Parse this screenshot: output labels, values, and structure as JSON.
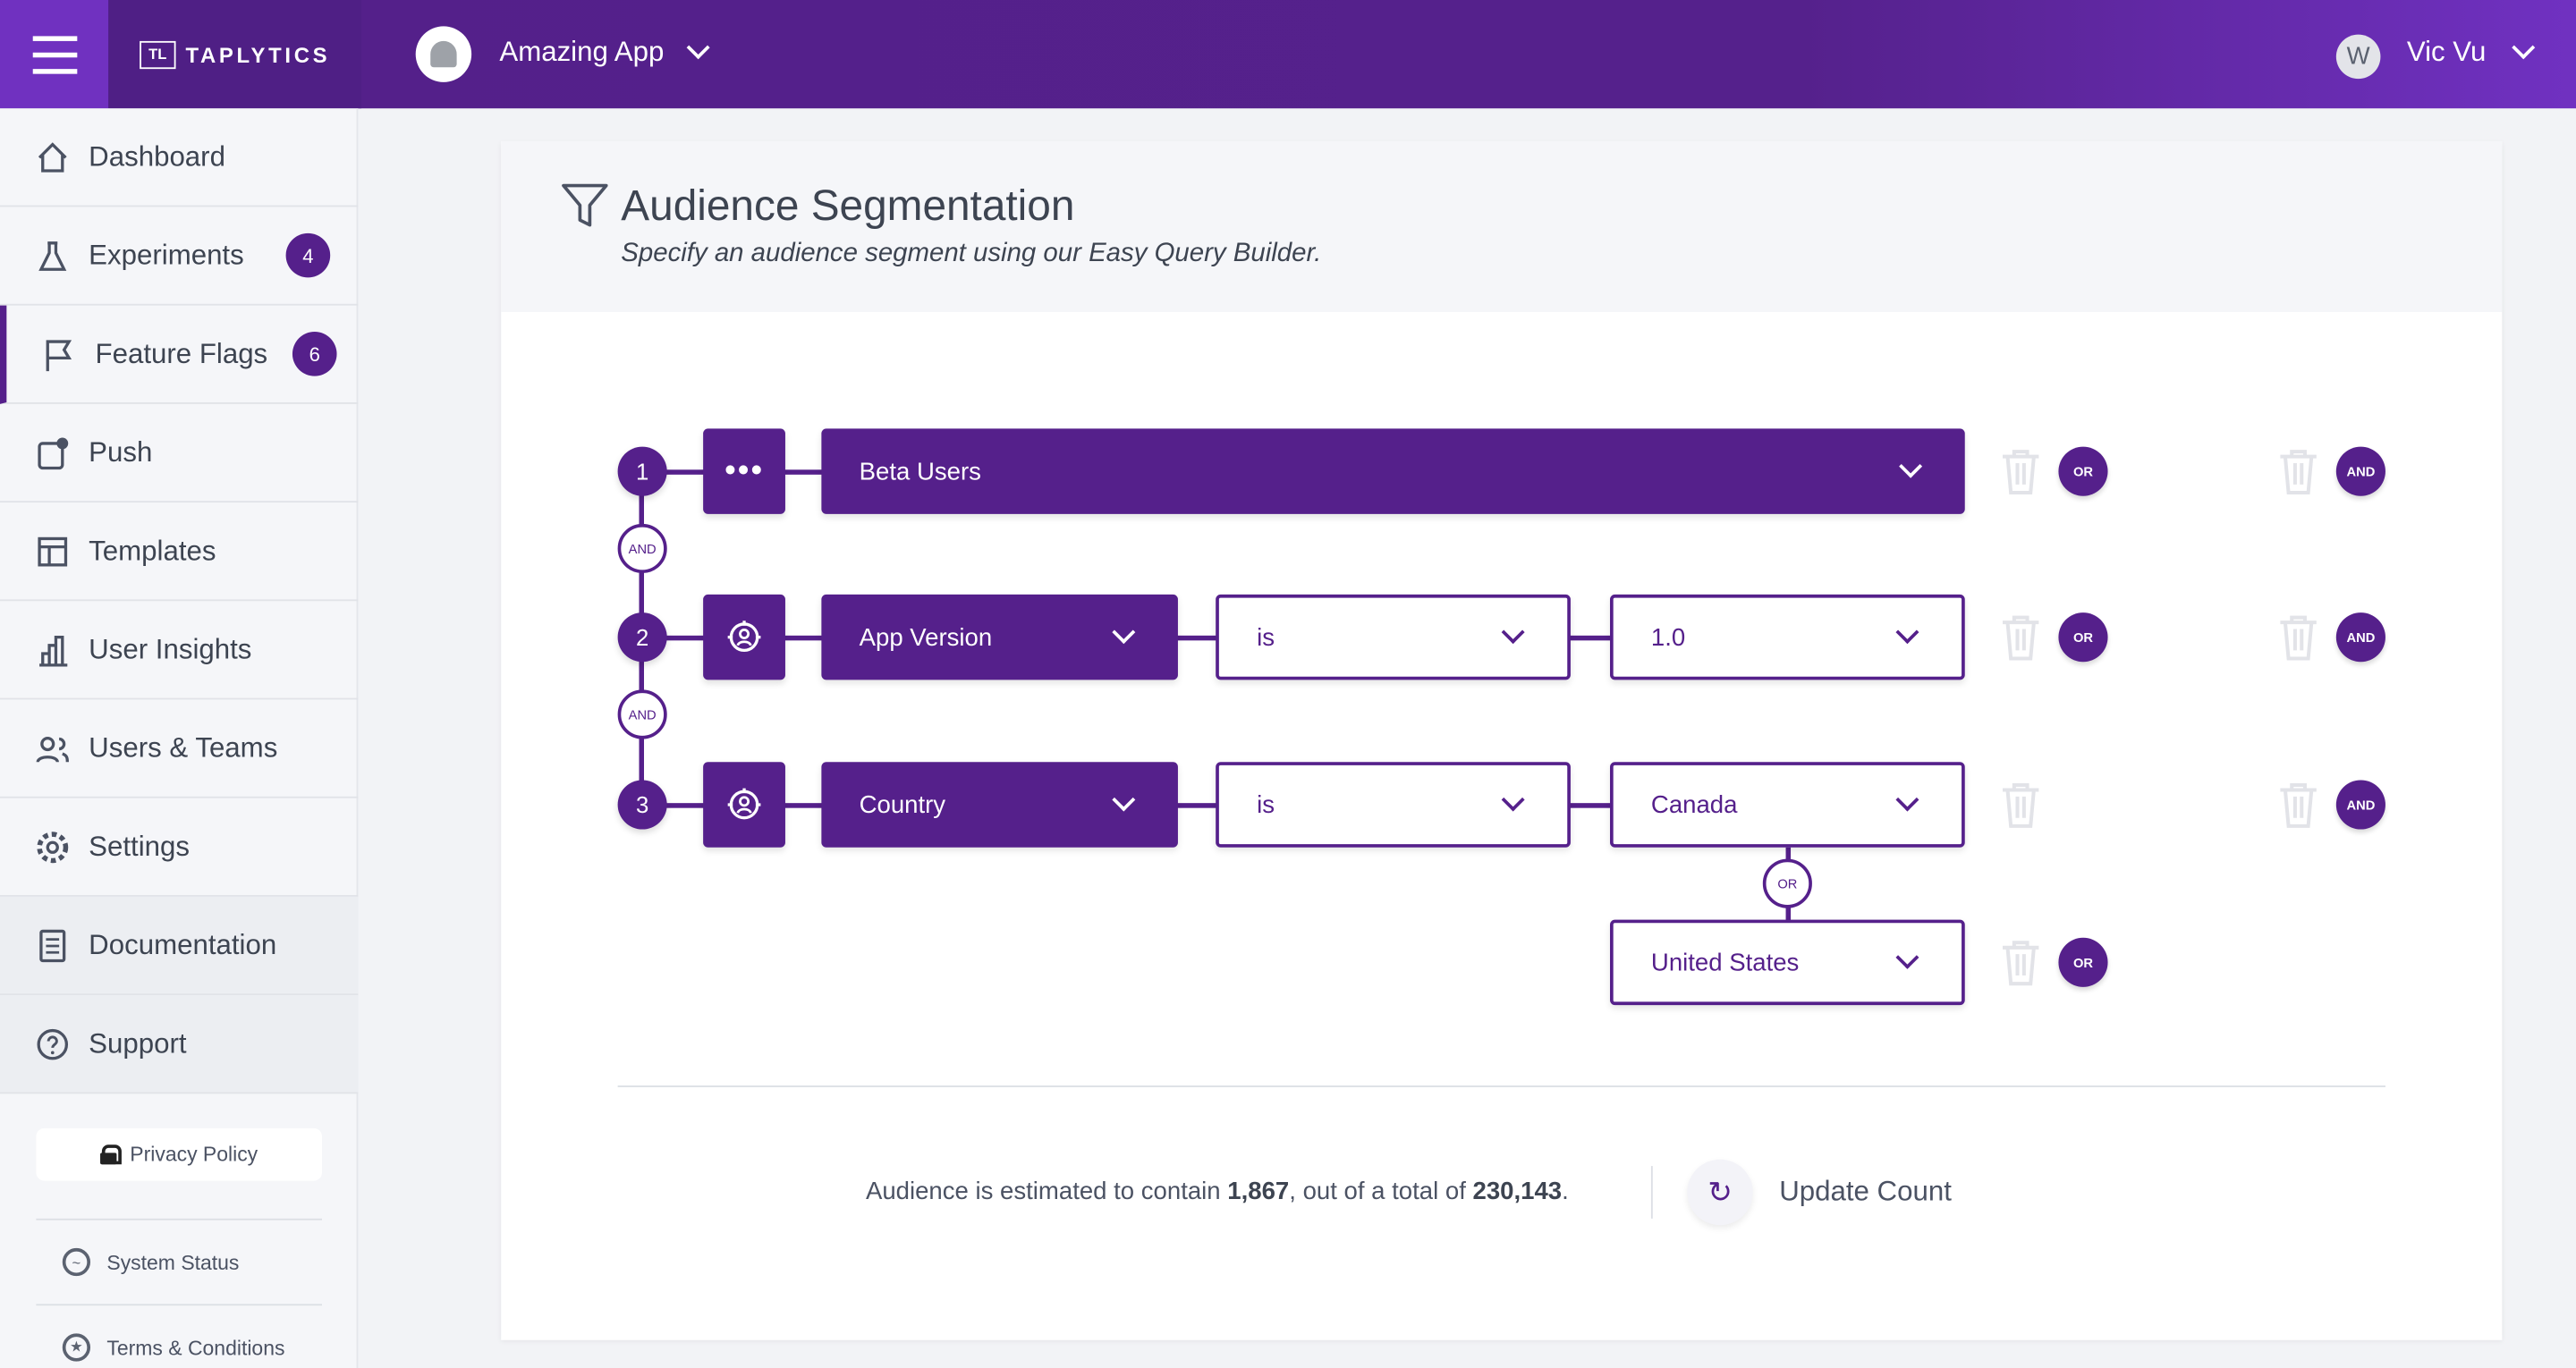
{
  "header": {
    "brand": "TAPLYTICS",
    "brand_mark": "TL",
    "app_name": "Amazing App",
    "user_initial": "W",
    "user_name": "Vic Vu"
  },
  "sidebar": {
    "items": [
      {
        "label": "Dashboard",
        "icon": "home-icon"
      },
      {
        "label": "Experiments",
        "icon": "flask-icon",
        "badge": "4"
      },
      {
        "label": "Feature Flags",
        "icon": "flag-icon",
        "badge": "6",
        "active": true
      },
      {
        "label": "Push",
        "icon": "push-notification-icon"
      },
      {
        "label": "Templates",
        "icon": "template-icon"
      },
      {
        "label": "User Insights",
        "icon": "bar-chart-icon"
      },
      {
        "label": "Users & Teams",
        "icon": "users-icon"
      },
      {
        "label": "Settings",
        "icon": "gear-icon"
      },
      {
        "label": "Documentation",
        "icon": "document-icon"
      },
      {
        "label": "Support",
        "icon": "help-icon"
      }
    ],
    "privacy_policy": "Privacy Policy",
    "system_status": "System Status",
    "terms": "Terms & Conditions"
  },
  "page": {
    "title": "Audience Segmentation",
    "subtitle": "Specify an audience segment using our Easy Query Builder."
  },
  "query": {
    "rows": [
      {
        "number": "1",
        "segment": "Beta Users"
      },
      {
        "number": "2",
        "field": "App Version",
        "operator": "is",
        "value": "1.0"
      },
      {
        "number": "3",
        "field": "Country",
        "operator": "is",
        "value": "Canada",
        "or_value": "United States"
      }
    ],
    "and_label": "AND",
    "or_label": "OR"
  },
  "footer": {
    "prefix": "Audience is estimated to contain ",
    "count": "1,867",
    "middle": ", out of a total of ",
    "total": "230,143",
    "suffix": ".",
    "update_label": "Update Count"
  },
  "colors": {
    "brand": "#55208b",
    "brand_light": "#7031c0",
    "trash": "#e2e3e8"
  }
}
